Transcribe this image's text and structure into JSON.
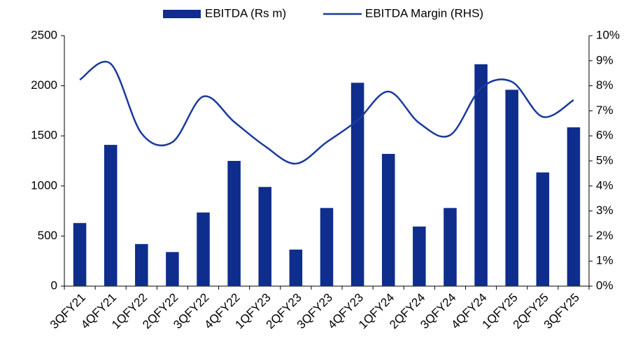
{
  "chart_data": {
    "type": "bar_line",
    "categories": [
      "3QFY21",
      "4QFY21",
      "1QFY22",
      "2QFY22",
      "3QFY22",
      "4QFY22",
      "1QFY23",
      "2QFY23",
      "3QFY23",
      "4QFY23",
      "1QFY24",
      "2QFY24",
      "3QFY24",
      "4QFY24",
      "1QFY25",
      "2QFY25",
      "3QFY25"
    ],
    "series": [
      {
        "name": "EBITDA (Rs m)",
        "type": "bar",
        "color": "#0f2d8c",
        "values": [
          630,
          1410,
          420,
          340,
          735,
          1250,
          990,
          365,
          780,
          2030,
          1320,
          595,
          780,
          2215,
          1960,
          1135,
          1585
        ]
      },
      {
        "name": "EBITDA Margin (RHS)",
        "type": "line",
        "axis": "y2",
        "color": "#1a3a9c",
        "values": [
          8.24,
          8.88,
          6.1,
          5.75,
          7.57,
          6.56,
          5.59,
          4.89,
          5.75,
          6.62,
          7.77,
          6.51,
          6.03,
          7.9,
          8.16,
          6.76,
          7.43
        ]
      }
    ],
    "ylim": [
      0,
      2500
    ],
    "yticks": [
      0,
      500,
      1000,
      1500,
      2000,
      2500
    ],
    "y2lim": [
      0,
      10
    ],
    "y2ticks": [
      {
        "value": 0,
        "label": "0%"
      },
      {
        "value": 1,
        "label": "1%"
      },
      {
        "value": 2,
        "label": "2%"
      },
      {
        "value": 3,
        "label": "3%"
      },
      {
        "value": 4,
        "label": "4%"
      },
      {
        "value": 5,
        "label": "5%"
      },
      {
        "value": 6,
        "label": "6%"
      },
      {
        "value": 7,
        "label": "7%"
      },
      {
        "value": 8,
        "label": "8%"
      },
      {
        "value": 9,
        "label": "9%"
      },
      {
        "value": 10,
        "label": "10%"
      }
    ],
    "legend": "top"
  }
}
